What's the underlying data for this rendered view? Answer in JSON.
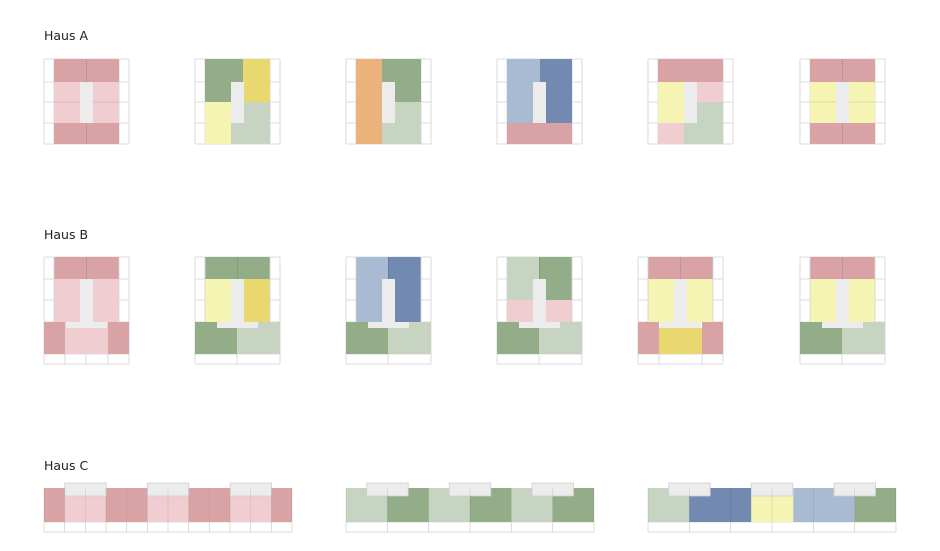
{
  "sections": [
    {
      "label": "Haus A"
    },
    {
      "label": "Haus B"
    },
    {
      "label": "Haus C"
    }
  ],
  "palette": {
    "red": "#d9a3a5",
    "pink": "#efcdd1",
    "dark_green": "#93ad88",
    "light_green": "#c7d4c2",
    "yellow": "#e9d86f",
    "light_yellow": "#f6f4b2",
    "orange": "#ecb27c",
    "light_blue": "#a9bbd2",
    "dark_blue": "#728ab1",
    "core": "#ececec",
    "grid": "#d2d2d2"
  }
}
